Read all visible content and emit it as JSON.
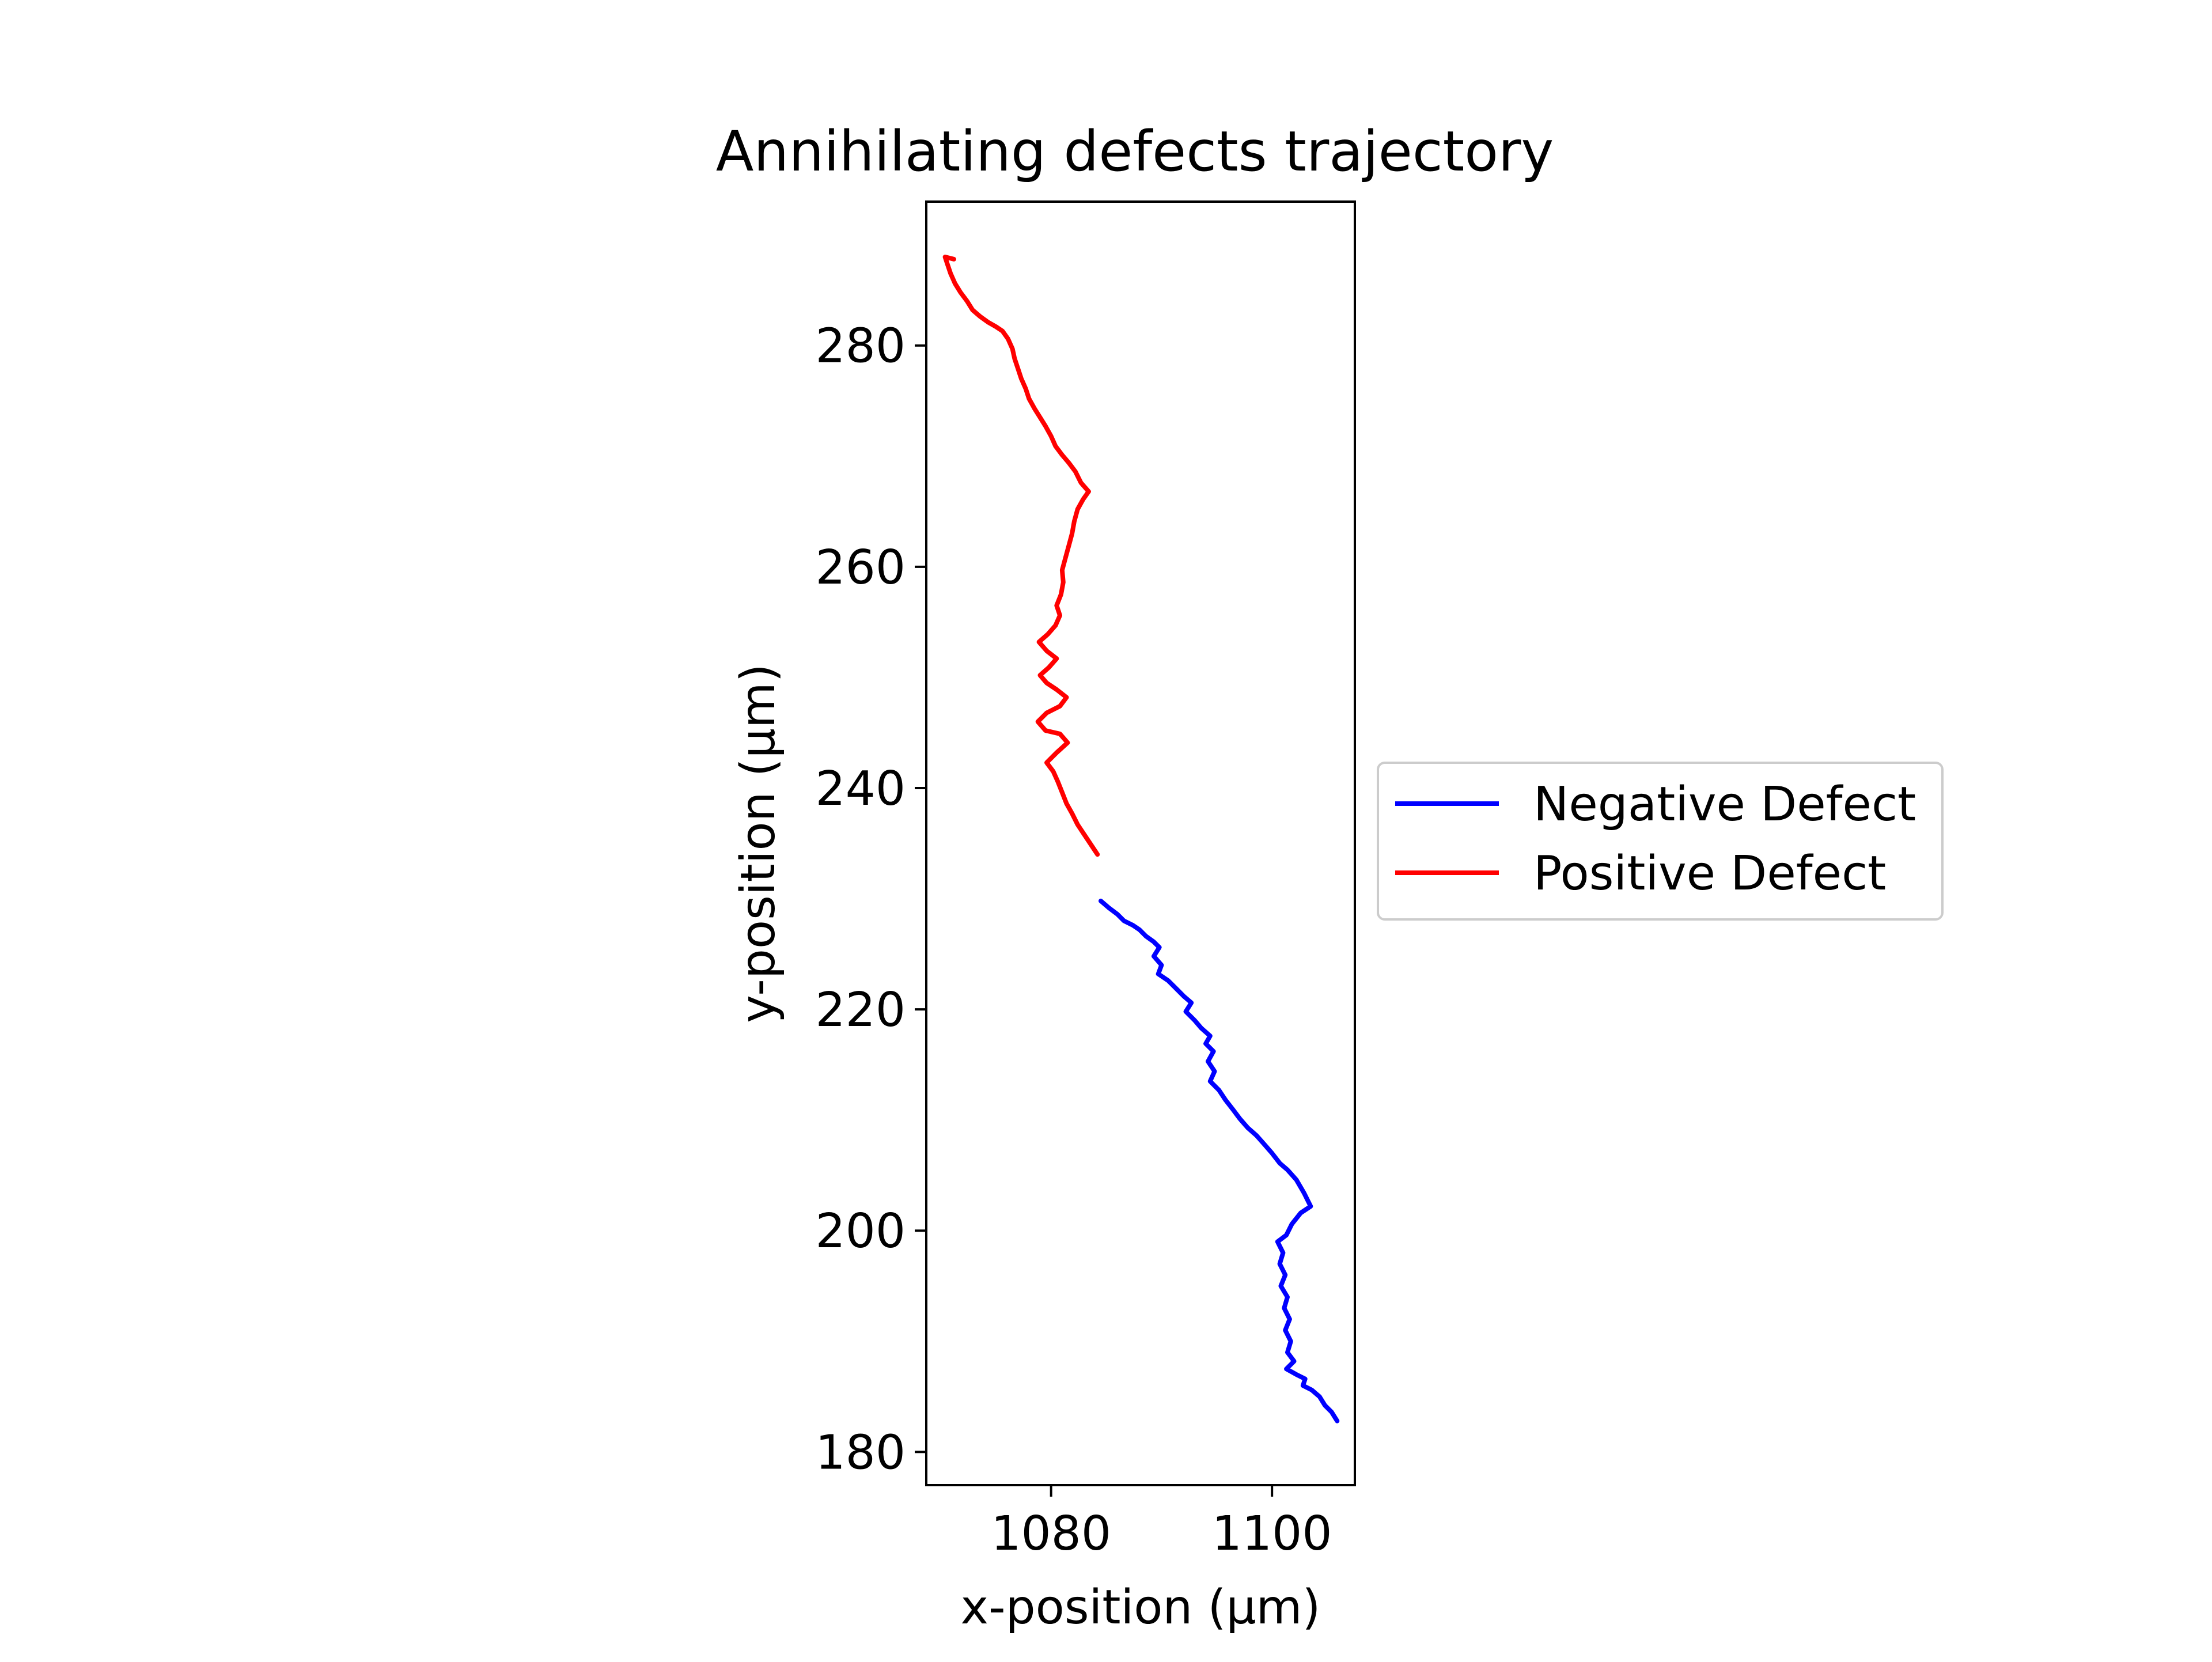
{
  "chart_data": {
    "type": "line",
    "title": "Annihilating defects trajectory",
    "xlabel": "x-position (µm)",
    "ylabel": "y-position (µm)",
    "xlim": [
      1068.7,
      1107.5
    ],
    "ylim": [
      177,
      293
    ],
    "x_ticks": [
      1080,
      1100
    ],
    "y_ticks": [
      180,
      200,
      220,
      240,
      260,
      280
    ],
    "grid": false,
    "legend_position": "center-right, outside axes",
    "series": [
      {
        "name": "Negative Defect",
        "color": "#0000ff",
        "points": [
          [
            1084.5,
            229.8
          ],
          [
            1085.2,
            229.2
          ],
          [
            1086.0,
            228.6
          ],
          [
            1086.6,
            228.0
          ],
          [
            1087.4,
            227.6
          ],
          [
            1088.0,
            227.2
          ],
          [
            1088.6,
            226.6
          ],
          [
            1089.3,
            226.1
          ],
          [
            1089.8,
            225.6
          ],
          [
            1089.3,
            224.8
          ],
          [
            1090.0,
            224.0
          ],
          [
            1089.7,
            223.2
          ],
          [
            1090.6,
            222.6
          ],
          [
            1091.4,
            221.8
          ],
          [
            1092.0,
            221.2
          ],
          [
            1092.7,
            220.6
          ],
          [
            1092.2,
            219.8
          ],
          [
            1093.0,
            219.0
          ],
          [
            1093.6,
            218.3
          ],
          [
            1094.4,
            217.6
          ],
          [
            1094.0,
            216.9
          ],
          [
            1094.7,
            216.2
          ],
          [
            1094.2,
            215.3
          ],
          [
            1094.8,
            214.4
          ],
          [
            1094.4,
            213.5
          ],
          [
            1095.2,
            212.7
          ],
          [
            1095.8,
            211.8
          ],
          [
            1096.5,
            210.9
          ],
          [
            1097.1,
            210.1
          ],
          [
            1097.8,
            209.3
          ],
          [
            1098.6,
            208.6
          ],
          [
            1099.3,
            207.8
          ],
          [
            1100.0,
            207.0
          ],
          [
            1100.7,
            206.1
          ],
          [
            1101.4,
            205.5
          ],
          [
            1102.2,
            204.6
          ],
          [
            1102.9,
            203.4
          ],
          [
            1103.5,
            202.2
          ],
          [
            1102.6,
            201.6
          ],
          [
            1101.8,
            200.6
          ],
          [
            1101.3,
            199.6
          ],
          [
            1100.5,
            199.0
          ],
          [
            1101.0,
            198.0
          ],
          [
            1100.7,
            197.0
          ],
          [
            1101.2,
            196.0
          ],
          [
            1100.8,
            195.0
          ],
          [
            1101.4,
            194.0
          ],
          [
            1101.1,
            193.0
          ],
          [
            1101.6,
            192.0
          ],
          [
            1101.2,
            191.0
          ],
          [
            1101.7,
            190.0
          ],
          [
            1101.4,
            189.0
          ],
          [
            1102.0,
            188.2
          ],
          [
            1101.3,
            187.5
          ],
          [
            1102.2,
            187.0
          ],
          [
            1103.0,
            186.6
          ],
          [
            1102.8,
            186.0
          ],
          [
            1103.6,
            185.6
          ],
          [
            1104.3,
            185.0
          ],
          [
            1104.8,
            184.2
          ],
          [
            1105.4,
            183.6
          ],
          [
            1105.9,
            182.8
          ]
        ]
      },
      {
        "name": "Positive Defect",
        "color": "#ff0000",
        "points": [
          [
            1084.2,
            234.0
          ],
          [
            1083.6,
            234.9
          ],
          [
            1083.0,
            235.8
          ],
          [
            1082.4,
            236.7
          ],
          [
            1081.9,
            237.7
          ],
          [
            1081.4,
            238.6
          ],
          [
            1081.0,
            239.6
          ],
          [
            1080.6,
            240.6
          ],
          [
            1080.2,
            241.5
          ],
          [
            1079.6,
            242.3
          ],
          [
            1080.5,
            243.2
          ],
          [
            1081.5,
            244.1
          ],
          [
            1080.8,
            244.9
          ],
          [
            1079.5,
            245.2
          ],
          [
            1078.8,
            246.0
          ],
          [
            1079.6,
            246.8
          ],
          [
            1080.8,
            247.4
          ],
          [
            1081.4,
            248.2
          ],
          [
            1080.5,
            248.9
          ],
          [
            1079.6,
            249.5
          ],
          [
            1079.0,
            250.2
          ],
          [
            1079.8,
            250.9
          ],
          [
            1080.5,
            251.7
          ],
          [
            1079.6,
            252.4
          ],
          [
            1078.9,
            253.2
          ],
          [
            1079.7,
            253.9
          ],
          [
            1080.4,
            254.7
          ],
          [
            1080.8,
            255.6
          ],
          [
            1080.5,
            256.5
          ],
          [
            1080.9,
            257.5
          ],
          [
            1081.1,
            258.6
          ],
          [
            1081.0,
            259.7
          ],
          [
            1081.3,
            260.8
          ],
          [
            1081.6,
            261.9
          ],
          [
            1081.9,
            263.0
          ],
          [
            1082.1,
            264.1
          ],
          [
            1082.4,
            265.2
          ],
          [
            1082.9,
            266.1
          ],
          [
            1083.4,
            266.8
          ],
          [
            1082.7,
            267.6
          ],
          [
            1082.2,
            268.6
          ],
          [
            1081.6,
            269.4
          ],
          [
            1081.0,
            270.1
          ],
          [
            1080.4,
            270.9
          ],
          [
            1080.0,
            271.8
          ],
          [
            1079.5,
            272.7
          ],
          [
            1079.0,
            273.5
          ],
          [
            1078.5,
            274.3
          ],
          [
            1078.0,
            275.2
          ],
          [
            1077.7,
            276.1
          ],
          [
            1077.3,
            277.0
          ],
          [
            1077.0,
            277.9
          ],
          [
            1076.7,
            278.8
          ],
          [
            1076.5,
            279.7
          ],
          [
            1076.1,
            280.6
          ],
          [
            1075.6,
            281.3
          ],
          [
            1075.0,
            281.7
          ],
          [
            1074.3,
            282.1
          ],
          [
            1073.6,
            282.6
          ],
          [
            1072.9,
            283.2
          ],
          [
            1072.4,
            284.0
          ],
          [
            1071.8,
            284.8
          ],
          [
            1071.3,
            285.6
          ],
          [
            1070.9,
            286.5
          ],
          [
            1070.6,
            287.4
          ],
          [
            1070.4,
            288.0
          ],
          [
            1071.2,
            287.8
          ]
        ]
      }
    ]
  }
}
